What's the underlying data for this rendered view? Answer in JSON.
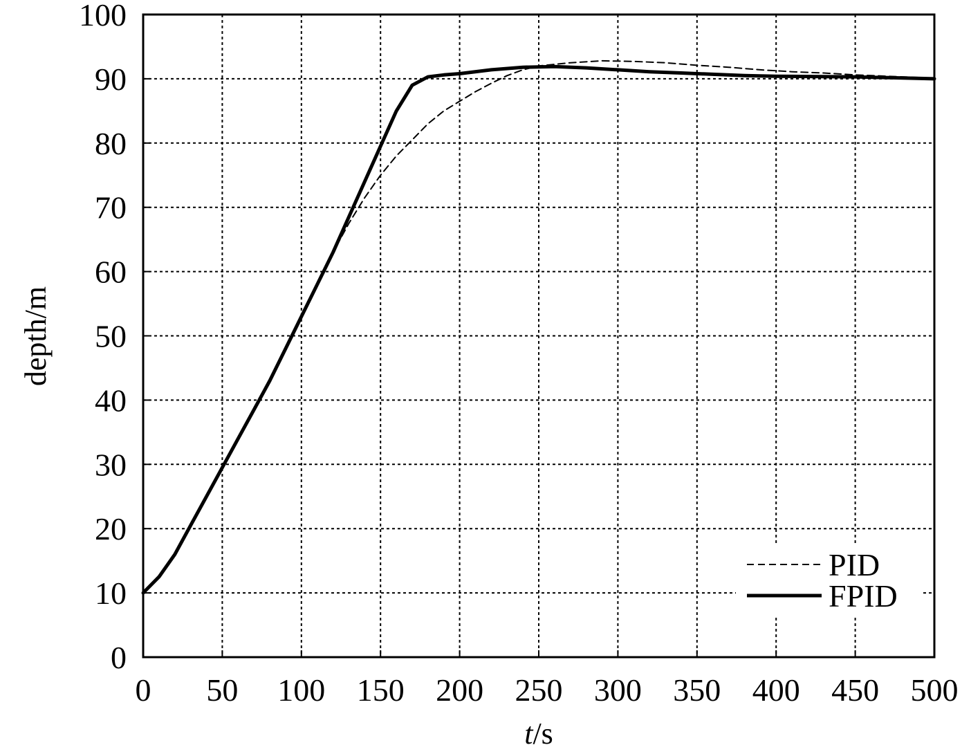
{
  "chart_data": {
    "type": "line",
    "title": "",
    "xlabel": {
      "italic": "t",
      "rest": "/s"
    },
    "ylabel": "depth/m",
    "xlim": [
      0,
      500
    ],
    "ylim": [
      0,
      100
    ],
    "xticks": [
      0,
      50,
      100,
      150,
      200,
      250,
      300,
      350,
      400,
      450,
      500
    ],
    "yticks": [
      0,
      10,
      20,
      30,
      40,
      50,
      60,
      70,
      80,
      90,
      100
    ],
    "grid": true,
    "legend_position": "bottom-right",
    "series": [
      {
        "name": "PID",
        "style": "dashed",
        "color": "#000000",
        "points": [
          [
            0,
            10
          ],
          [
            10,
            12.5
          ],
          [
            20,
            16
          ],
          [
            30,
            20.5
          ],
          [
            40,
            25
          ],
          [
            50,
            29.5
          ],
          [
            60,
            34
          ],
          [
            70,
            38.5
          ],
          [
            80,
            43
          ],
          [
            90,
            48
          ],
          [
            100,
            53
          ],
          [
            110,
            58
          ],
          [
            120,
            63
          ],
          [
            130,
            67.5
          ],
          [
            140,
            71.5
          ],
          [
            150,
            75
          ],
          [
            160,
            78
          ],
          [
            170,
            80.5
          ],
          [
            180,
            83
          ],
          [
            190,
            85
          ],
          [
            200,
            86.5
          ],
          [
            210,
            88
          ],
          [
            220,
            89.3
          ],
          [
            230,
            90.5
          ],
          [
            240,
            91.4
          ],
          [
            250,
            92
          ],
          [
            270,
            92.5
          ],
          [
            290,
            92.8
          ],
          [
            310,
            92.7
          ],
          [
            330,
            92.5
          ],
          [
            350,
            92.1
          ],
          [
            370,
            91.8
          ],
          [
            390,
            91.4
          ],
          [
            410,
            91.1
          ],
          [
            430,
            90.9
          ],
          [
            450,
            90.6
          ],
          [
            470,
            90.4
          ],
          [
            490,
            90.2
          ],
          [
            500,
            90
          ]
        ]
      },
      {
        "name": "FPID",
        "style": "solid",
        "color": "#000000",
        "points": [
          [
            0,
            10
          ],
          [
            10,
            12.5
          ],
          [
            20,
            16
          ],
          [
            30,
            20.5
          ],
          [
            40,
            25
          ],
          [
            50,
            29.5
          ],
          [
            60,
            34
          ],
          [
            70,
            38.5
          ],
          [
            80,
            43
          ],
          [
            90,
            48
          ],
          [
            100,
            53
          ],
          [
            110,
            58
          ],
          [
            120,
            63
          ],
          [
            130,
            68.5
          ],
          [
            140,
            74
          ],
          [
            150,
            79.5
          ],
          [
            160,
            85
          ],
          [
            170,
            89
          ],
          [
            180,
            90.3
          ],
          [
            190,
            90.6
          ],
          [
            200,
            90.8
          ],
          [
            220,
            91.4
          ],
          [
            240,
            91.8
          ],
          [
            260,
            91.9
          ],
          [
            280,
            91.7
          ],
          [
            300,
            91.4
          ],
          [
            320,
            91.1
          ],
          [
            340,
            90.9
          ],
          [
            360,
            90.7
          ],
          [
            380,
            90.5
          ],
          [
            400,
            90.4
          ],
          [
            450,
            90.3
          ],
          [
            500,
            90
          ]
        ]
      }
    ]
  }
}
